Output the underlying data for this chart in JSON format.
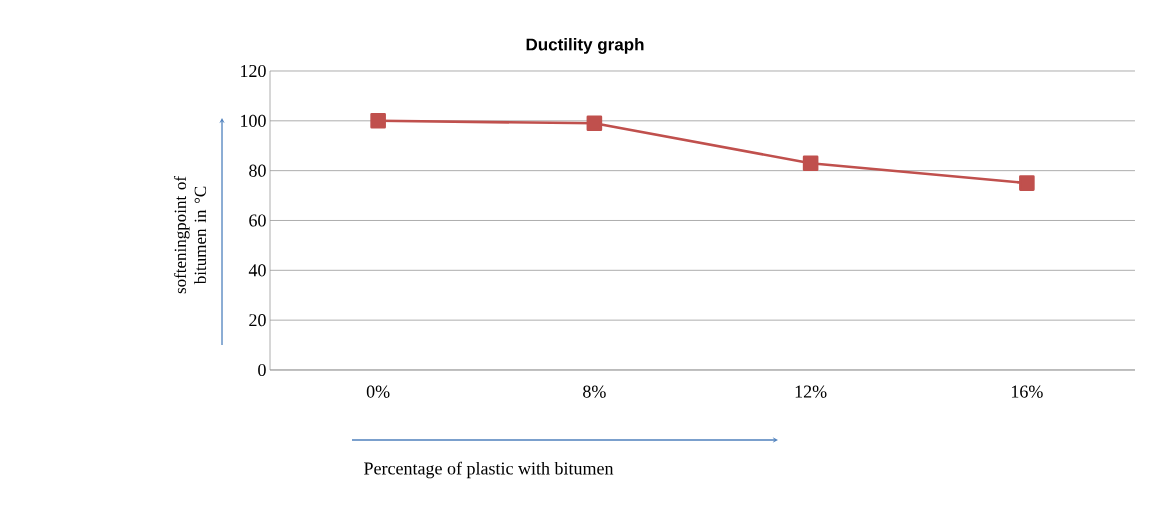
{
  "chart_data": {
    "type": "line",
    "title": "Ductility  graph",
    "xlabel": "Percentage of plastic with bitumen",
    "ylabel": "softeningpoint of bitumen in °C",
    "categories": [
      "0%",
      "8%",
      "12%",
      "16%"
    ],
    "series": [
      {
        "color": "#c0504d",
        "values": [
          100,
          99,
          83,
          75
        ]
      }
    ],
    "ylim": [
      0,
      120
    ],
    "yticks": [
      0,
      20,
      40,
      60,
      80,
      100,
      120
    ],
    "grid": "y",
    "marker": "square",
    "line_style": "solid",
    "legend": false
  }
}
